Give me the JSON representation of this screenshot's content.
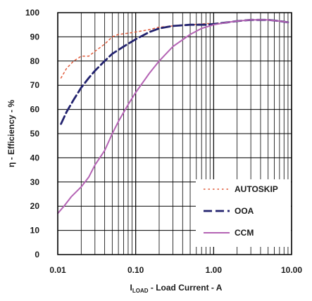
{
  "chart_data": {
    "type": "line",
    "xscale": "log",
    "xlim": [
      0.01,
      10
    ],
    "ylim": [
      0,
      100
    ],
    "grid": true,
    "legend_position": "bottom-right",
    "xlabel": {
      "main": "I",
      "sub": "LOAD",
      "rest": " - Load Current - A"
    },
    "ylabel": "η - Efficiency - %",
    "x_ticks": [
      {
        "value": 0.01,
        "label": "0.01"
      },
      {
        "value": 0.1,
        "label": "0.10"
      },
      {
        "value": 1,
        "label": "1.00"
      },
      {
        "value": 10,
        "label": "10.00"
      }
    ],
    "y_ticks": [
      {
        "value": 0,
        "label": "0"
      },
      {
        "value": 10,
        "label": "10"
      },
      {
        "value": 20,
        "label": "20"
      },
      {
        "value": 30,
        "label": "30"
      },
      {
        "value": 40,
        "label": "40"
      },
      {
        "value": 50,
        "label": "50"
      },
      {
        "value": 60,
        "label": "60"
      },
      {
        "value": 70,
        "label": "70"
      },
      {
        "value": 80,
        "label": "80"
      },
      {
        "value": 90,
        "label": "90"
      },
      {
        "value": 100,
        "label": "100"
      }
    ],
    "series": [
      {
        "name": "AUTOSKIP",
        "color": "#e05a3a",
        "style": "dotted",
        "points": [
          [
            0.011,
            73
          ],
          [
            0.013,
            77
          ],
          [
            0.016,
            80
          ],
          [
            0.02,
            82
          ],
          [
            0.025,
            82
          ],
          [
            0.03,
            84
          ],
          [
            0.04,
            87
          ],
          [
            0.05,
            90
          ],
          [
            0.06,
            91
          ],
          [
            0.08,
            91.5
          ],
          [
            0.1,
            92
          ],
          [
            0.15,
            93
          ],
          [
            0.2,
            94
          ],
          [
            0.3,
            94.5
          ],
          [
            0.5,
            95
          ],
          [
            0.8,
            95.5
          ],
          [
            1,
            95.5
          ],
          [
            1.5,
            96
          ],
          [
            2,
            96.5
          ],
          [
            3,
            97
          ],
          [
            5,
            97
          ],
          [
            7,
            96.5
          ],
          [
            9,
            96
          ]
        ]
      },
      {
        "name": "OOA",
        "color": "#22226e",
        "style": "dashed",
        "points": [
          [
            0.011,
            54
          ],
          [
            0.013,
            59
          ],
          [
            0.016,
            64
          ],
          [
            0.02,
            69
          ],
          [
            0.025,
            73
          ],
          [
            0.03,
            76
          ],
          [
            0.04,
            80
          ],
          [
            0.05,
            83
          ],
          [
            0.07,
            86
          ],
          [
            0.1,
            89
          ],
          [
            0.15,
            92
          ],
          [
            0.2,
            93.5
          ],
          [
            0.3,
            94.5
          ],
          [
            0.5,
            95
          ],
          [
            0.8,
            95
          ],
          [
            1,
            95.3
          ],
          [
            1.5,
            96
          ],
          [
            2,
            96.5
          ],
          [
            3,
            97
          ],
          [
            5,
            97
          ],
          [
            7,
            96.5
          ],
          [
            9,
            96
          ]
        ]
      },
      {
        "name": "CCM",
        "color": "#b463b4",
        "style": "solid",
        "points": [
          [
            0.01,
            17
          ],
          [
            0.012,
            20
          ],
          [
            0.015,
            24
          ],
          [
            0.02,
            28
          ],
          [
            0.025,
            32
          ],
          [
            0.03,
            37
          ],
          [
            0.04,
            43
          ],
          [
            0.05,
            50
          ],
          [
            0.06,
            55
          ],
          [
            0.08,
            62
          ],
          [
            0.1,
            67
          ],
          [
            0.15,
            75
          ],
          [
            0.2,
            80
          ],
          [
            0.3,
            86
          ],
          [
            0.5,
            91
          ],
          [
            0.7,
            93.5
          ],
          [
            1,
            95
          ],
          [
            1.5,
            96
          ],
          [
            2,
            96.5
          ],
          [
            3,
            97
          ],
          [
            5,
            97
          ],
          [
            7,
            96.5
          ],
          [
            9,
            96
          ]
        ]
      }
    ]
  }
}
